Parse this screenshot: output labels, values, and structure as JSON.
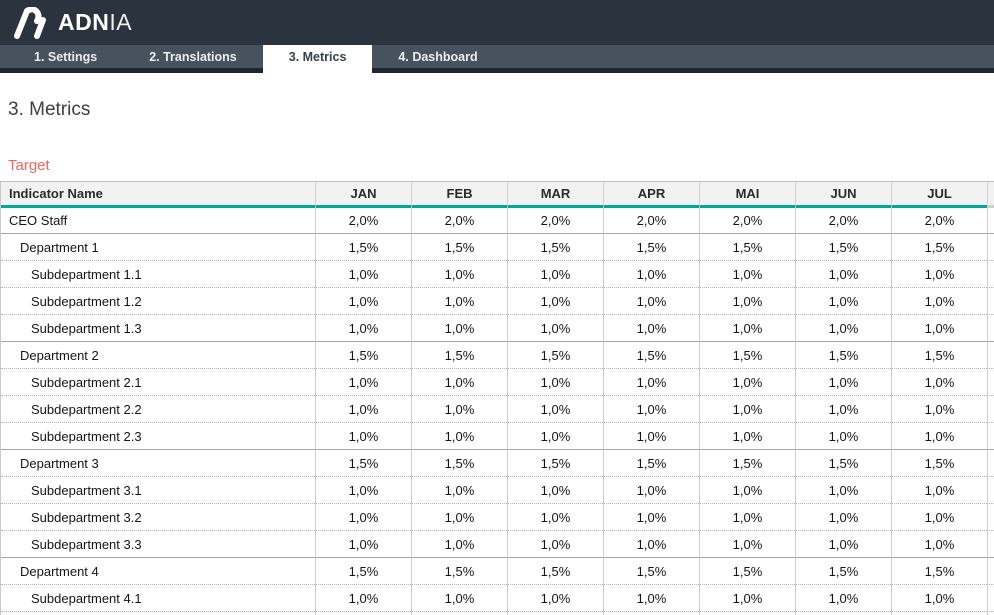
{
  "brand": {
    "name_bold": "ADN",
    "name_light": "IA"
  },
  "tabs": [
    {
      "label": "1. Settings",
      "active": false
    },
    {
      "label": "2. Translations",
      "active": false
    },
    {
      "label": "3. Metrics",
      "active": true
    },
    {
      "label": "4. Dashboard",
      "active": false
    }
  ],
  "page": {
    "title": "3. Metrics",
    "section_label": "Target"
  },
  "table": {
    "name_header": "Indicator Name",
    "month_headers": [
      "JAN",
      "FEB",
      "MAR",
      "APR",
      "MAI",
      "JUN",
      "JUL"
    ],
    "rows": [
      {
        "name": "CEO Staff",
        "level": 0,
        "values": [
          "2,0%",
          "2,0%",
          "2,0%",
          "2,0%",
          "2,0%",
          "2,0%",
          "2,0%"
        ]
      },
      {
        "name": "Department 1",
        "level": 1,
        "values": [
          "1,5%",
          "1,5%",
          "1,5%",
          "1,5%",
          "1,5%",
          "1,5%",
          "1,5%"
        ]
      },
      {
        "name": "Subdepartment 1.1",
        "level": 2,
        "values": [
          "1,0%",
          "1,0%",
          "1,0%",
          "1,0%",
          "1,0%",
          "1,0%",
          "1,0%"
        ]
      },
      {
        "name": "Subdepartment 1.2",
        "level": 2,
        "values": [
          "1,0%",
          "1,0%",
          "1,0%",
          "1,0%",
          "1,0%",
          "1,0%",
          "1,0%"
        ]
      },
      {
        "name": "Subdepartment 1.3",
        "level": 2,
        "values": [
          "1,0%",
          "1,0%",
          "1,0%",
          "1,0%",
          "1,0%",
          "1,0%",
          "1,0%"
        ]
      },
      {
        "name": "Department 2",
        "level": 1,
        "values": [
          "1,5%",
          "1,5%",
          "1,5%",
          "1,5%",
          "1,5%",
          "1,5%",
          "1,5%"
        ]
      },
      {
        "name": "Subdepartment 2.1",
        "level": 2,
        "values": [
          "1,0%",
          "1,0%",
          "1,0%",
          "1,0%",
          "1,0%",
          "1,0%",
          "1,0%"
        ]
      },
      {
        "name": "Subdepartment 2.2",
        "level": 2,
        "values": [
          "1,0%",
          "1,0%",
          "1,0%",
          "1,0%",
          "1,0%",
          "1,0%",
          "1,0%"
        ]
      },
      {
        "name": "Subdepartment 2.3",
        "level": 2,
        "values": [
          "1,0%",
          "1,0%",
          "1,0%",
          "1,0%",
          "1,0%",
          "1,0%",
          "1,0%"
        ]
      },
      {
        "name": "Department 3",
        "level": 1,
        "values": [
          "1,5%",
          "1,5%",
          "1,5%",
          "1,5%",
          "1,5%",
          "1,5%",
          "1,5%"
        ]
      },
      {
        "name": "Subdepartment 3.1",
        "level": 2,
        "values": [
          "1,0%",
          "1,0%",
          "1,0%",
          "1,0%",
          "1,0%",
          "1,0%",
          "1,0%"
        ]
      },
      {
        "name": "Subdepartment 3.2",
        "level": 2,
        "values": [
          "1,0%",
          "1,0%",
          "1,0%",
          "1,0%",
          "1,0%",
          "1,0%",
          "1,0%"
        ]
      },
      {
        "name": "Subdepartment 3.3",
        "level": 2,
        "values": [
          "1,0%",
          "1,0%",
          "1,0%",
          "1,0%",
          "1,0%",
          "1,0%",
          "1,0%"
        ]
      },
      {
        "name": "Department 4",
        "level": 1,
        "values": [
          "1,5%",
          "1,5%",
          "1,5%",
          "1,5%",
          "1,5%",
          "1,5%",
          "1,5%"
        ]
      },
      {
        "name": "Subdepartment 4.1",
        "level": 2,
        "values": [
          "1,0%",
          "1,0%",
          "1,0%",
          "1,0%",
          "1,0%",
          "1,0%",
          "1,0%"
        ]
      }
    ]
  },
  "colors": {
    "topbar": "#2b333e",
    "tabstrip": "#46525e",
    "accent_teal": "#00a89c",
    "target_red": "#f4655f"
  }
}
